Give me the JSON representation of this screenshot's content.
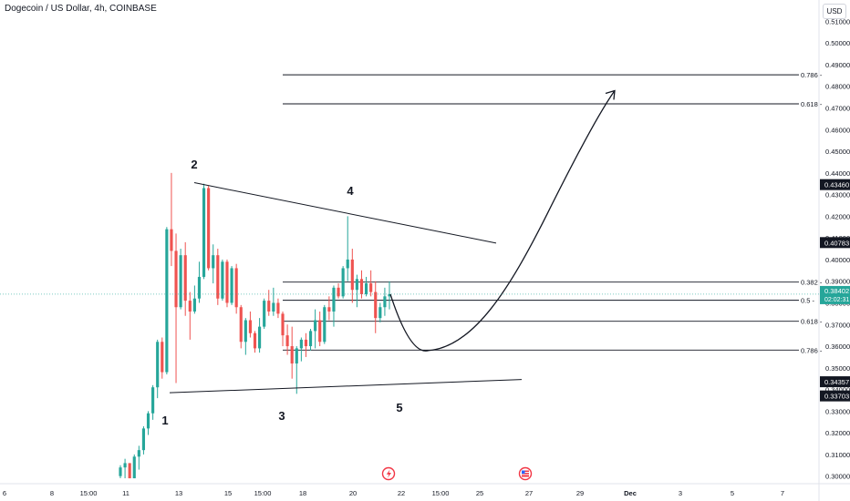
{
  "header": {
    "title": "Dogecoin / US Dollar, 4h, COINBASE",
    "currency": "USD"
  },
  "chart_data": {
    "type": "candlestick",
    "ylim": [
      0.2965,
      0.5148
    ],
    "y_ticks": [
      "0.30000",
      "0.31000",
      "0.32000",
      "0.33000",
      "0.34000",
      "0.35000",
      "0.36000",
      "0.37000",
      "0.38000",
      "0.39000",
      "0.40000",
      "0.41000",
      "0.42000",
      "0.43000",
      "0.44000",
      "0.45000",
      "0.46000",
      "0.47000",
      "0.48000",
      "0.49000",
      "0.50000",
      "0.51000"
    ],
    "x_ticks": [
      "6",
      "8",
      "15:00",
      "11",
      "13",
      "15",
      "15:00",
      "18",
      "20",
      "22",
      "15:00",
      "25",
      "27",
      "29",
      "Dec",
      "3",
      "5",
      "7"
    ],
    "price_labels": [
      {
        "text": "0.43460",
        "value": 0.4346,
        "style": "dark"
      },
      {
        "text": "0.40783",
        "value": 0.40783,
        "style": "dark"
      },
      {
        "text": "0.38402",
        "value": 0.38402,
        "sub": "02:02:31",
        "style": "teal"
      },
      {
        "text": "0.34357",
        "value": 0.34357,
        "style": "dark"
      },
      {
        "text": "0.33703",
        "value": 0.33703,
        "style": "dark"
      }
    ],
    "current_price": 0.38402,
    "fib_levels": [
      {
        "label": "0.786",
        "value": 0.4853
      },
      {
        "label": "0.618",
        "value": 0.4719
      },
      {
        "label": "0.382",
        "value": 0.3896
      },
      {
        "label": "0.5",
        "value": 0.3812
      },
      {
        "label": "0.618",
        "value": 0.3715
      },
      {
        "label": "0.786",
        "value": 0.3582
      }
    ],
    "wave_labels": [
      "1",
      "2",
      "3",
      "4",
      "5"
    ],
    "triangle": {
      "upper": [
        {
          "date": "Nov 13 12:00",
          "price": 0.4355
        },
        {
          "date": "Nov 24 08:00",
          "price": 0.4076
        }
      ],
      "lower": [
        {
          "date": "Nov 13 12:00",
          "price": 0.3385
        },
        {
          "date": "Nov 24 20:00",
          "price": 0.3446
        }
      ]
    },
    "projection": {
      "path_prices": [
        0.384,
        0.358,
        0.478
      ]
    },
    "candles": [
      [
        0.3,
        0.305,
        0.299,
        0.304
      ],
      [
        0.304,
        0.308,
        0.299,
        0.306
      ],
      [
        0.306,
        0.306,
        0.299,
        0.299
      ],
      [
        0.299,
        0.31,
        0.299,
        0.309
      ],
      [
        0.309,
        0.314,
        0.303,
        0.312
      ],
      [
        0.312,
        0.323,
        0.31,
        0.322
      ],
      [
        0.322,
        0.33,
        0.319,
        0.329
      ],
      [
        0.329,
        0.342,
        0.326,
        0.341
      ],
      [
        0.341,
        0.363,
        0.336,
        0.362
      ],
      [
        0.362,
        0.364,
        0.345,
        0.348
      ],
      [
        0.348,
        0.415,
        0.347,
        0.414
      ],
      [
        0.414,
        0.44,
        0.397,
        0.404
      ],
      [
        0.404,
        0.412,
        0.343,
        0.378
      ],
      [
        0.378,
        0.405,
        0.377,
        0.402
      ],
      [
        0.402,
        0.408,
        0.374,
        0.381
      ],
      [
        0.381,
        0.385,
        0.363,
        0.376
      ],
      [
        0.376,
        0.388,
        0.375,
        0.382
      ],
      [
        0.382,
        0.399,
        0.38,
        0.392
      ],
      [
        0.392,
        0.435,
        0.391,
        0.433
      ],
      [
        0.433,
        0.434,
        0.395,
        0.396
      ],
      [
        0.396,
        0.407,
        0.389,
        0.402
      ],
      [
        0.402,
        0.405,
        0.379,
        0.382
      ],
      [
        0.382,
        0.4,
        0.381,
        0.399
      ],
      [
        0.399,
        0.4,
        0.378,
        0.38
      ],
      [
        0.38,
        0.397,
        0.379,
        0.396
      ],
      [
        0.396,
        0.398,
        0.375,
        0.378
      ],
      [
        0.378,
        0.379,
        0.359,
        0.362
      ],
      [
        0.362,
        0.373,
        0.356,
        0.372
      ],
      [
        0.372,
        0.376,
        0.364,
        0.366
      ],
      [
        0.366,
        0.367,
        0.357,
        0.359
      ],
      [
        0.359,
        0.373,
        0.357,
        0.369
      ],
      [
        0.369,
        0.382,
        0.368,
        0.381
      ],
      [
        0.381,
        0.386,
        0.374,
        0.376
      ],
      [
        0.376,
        0.387,
        0.374,
        0.38
      ],
      [
        0.38,
        0.382,
        0.373,
        0.375
      ],
      [
        0.375,
        0.376,
        0.36,
        0.365
      ],
      [
        0.365,
        0.37,
        0.356,
        0.36
      ],
      [
        0.36,
        0.369,
        0.345,
        0.352
      ],
      [
        0.352,
        0.36,
        0.338,
        0.359
      ],
      [
        0.359,
        0.364,
        0.353,
        0.363
      ],
      [
        0.363,
        0.366,
        0.355,
        0.36
      ],
      [
        0.36,
        0.368,
        0.358,
        0.367
      ],
      [
        0.367,
        0.377,
        0.359,
        0.372
      ],
      [
        0.372,
        0.376,
        0.36,
        0.362
      ],
      [
        0.362,
        0.379,
        0.361,
        0.378
      ],
      [
        0.378,
        0.383,
        0.372,
        0.376
      ],
      [
        0.376,
        0.388,
        0.369,
        0.387
      ],
      [
        0.387,
        0.389,
        0.382,
        0.383
      ],
      [
        0.383,
        0.397,
        0.382,
        0.396
      ],
      [
        0.396,
        0.42,
        0.39,
        0.4
      ],
      [
        0.4,
        0.405,
        0.38,
        0.386
      ],
      [
        0.386,
        0.393,
        0.378,
        0.391
      ],
      [
        0.391,
        0.395,
        0.382,
        0.384
      ],
      [
        0.384,
        0.392,
        0.383,
        0.389
      ],
      [
        0.389,
        0.395,
        0.383,
        0.385
      ],
      [
        0.385,
        0.39,
        0.366,
        0.373
      ],
      [
        0.373,
        0.38,
        0.371,
        0.378
      ],
      [
        0.378,
        0.387,
        0.374,
        0.383
      ],
      [
        0.383,
        0.39,
        0.377,
        0.384
      ]
    ]
  }
}
